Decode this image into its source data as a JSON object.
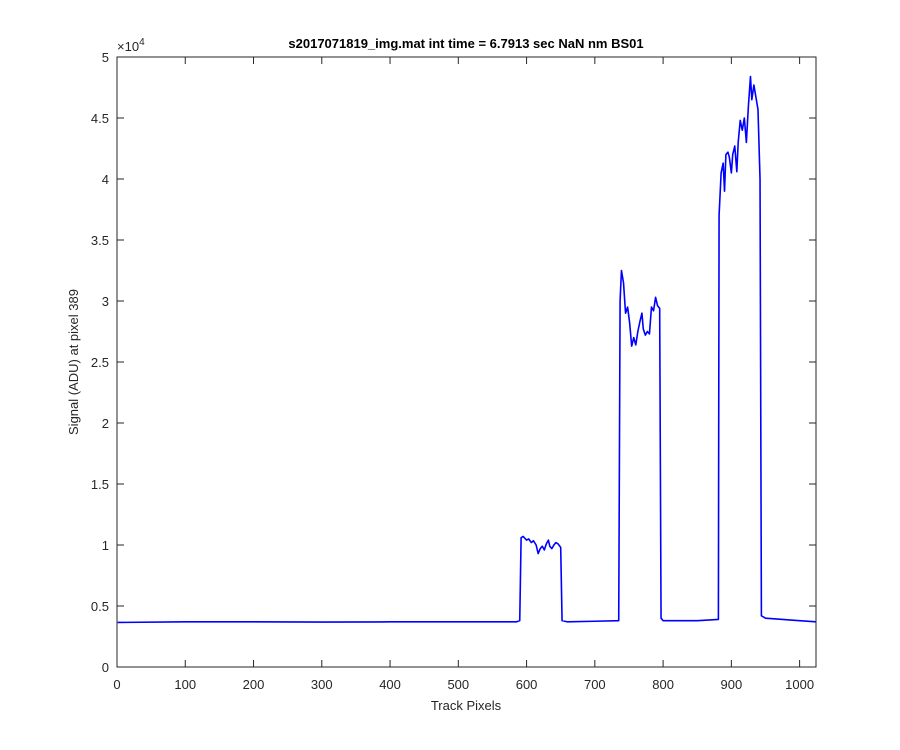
{
  "chart_data": {
    "type": "line",
    "title": "s2017071819_img.mat int time = 6.7913 sec  NaN nm BS01",
    "xlabel": "Track Pixels",
    "ylabel": "Signal (ADU) at pixel 389",
    "xlim": [
      0,
      1024
    ],
    "ylim": [
      0,
      50000
    ],
    "x_ticks": [
      0,
      100,
      200,
      300,
      400,
      500,
      600,
      700,
      800,
      900,
      1000
    ],
    "x_tick_labels": [
      "0",
      "100",
      "200",
      "300",
      "400",
      "500",
      "600",
      "700",
      "800",
      "900",
      "1000"
    ],
    "y_ticks": [
      0,
      5000,
      10000,
      15000,
      20000,
      25000,
      30000,
      35000,
      40000,
      45000,
      50000
    ],
    "y_tick_labels": [
      "0",
      "0.5",
      "1",
      "1.5",
      "2",
      "2.5",
      "3",
      "3.5",
      "4",
      "4.5",
      "5"
    ],
    "y_exponent_label": "×10",
    "y_exponent_power": "4",
    "grid": false,
    "series": [
      {
        "color": "#0000ff",
        "points": [
          [
            1,
            3650
          ],
          [
            100,
            3700
          ],
          [
            200,
            3700
          ],
          [
            300,
            3680
          ],
          [
            400,
            3700
          ],
          [
            500,
            3700
          ],
          [
            585,
            3700
          ],
          [
            590,
            3800
          ],
          [
            592,
            10600
          ],
          [
            595,
            10700
          ],
          [
            600,
            10400
          ],
          [
            603,
            10500
          ],
          [
            607,
            10200
          ],
          [
            610,
            10350
          ],
          [
            614,
            10000
          ],
          [
            617,
            9300
          ],
          [
            620,
            9700
          ],
          [
            623,
            9900
          ],
          [
            626,
            9600
          ],
          [
            629,
            10100
          ],
          [
            632,
            10400
          ],
          [
            634,
            9900
          ],
          [
            637,
            9700
          ],
          [
            640,
            10000
          ],
          [
            643,
            10200
          ],
          [
            646,
            10100
          ],
          [
            650,
            9800
          ],
          [
            652,
            3800
          ],
          [
            660,
            3700
          ],
          [
            700,
            3750
          ],
          [
            735,
            3800
          ],
          [
            737,
            30000
          ],
          [
            739,
            32500
          ],
          [
            742,
            31500
          ],
          [
            745,
            29000
          ],
          [
            748,
            29500
          ],
          [
            751,
            28200
          ],
          [
            754,
            26300
          ],
          [
            757,
            27000
          ],
          [
            760,
            26400
          ],
          [
            763,
            27500
          ],
          [
            766,
            28300
          ],
          [
            769,
            29000
          ],
          [
            771,
            27700
          ],
          [
            774,
            27200
          ],
          [
            777,
            27500
          ],
          [
            780,
            27300
          ],
          [
            783,
            29500
          ],
          [
            786,
            29200
          ],
          [
            789,
            30300
          ],
          [
            792,
            29600
          ],
          [
            795,
            29400
          ],
          [
            797,
            4000
          ],
          [
            800,
            3800
          ],
          [
            850,
            3800
          ],
          [
            881,
            3900
          ],
          [
            882,
            37000
          ],
          [
            885,
            40500
          ],
          [
            888,
            41300
          ],
          [
            890,
            39000
          ],
          [
            892,
            42000
          ],
          [
            895,
            42200
          ],
          [
            897,
            41800
          ],
          [
            900,
            40500
          ],
          [
            902,
            42000
          ],
          [
            905,
            42700
          ],
          [
            908,
            40600
          ],
          [
            910,
            43000
          ],
          [
            913,
            44800
          ],
          [
            916,
            44000
          ],
          [
            919,
            45000
          ],
          [
            922,
            43000
          ],
          [
            925,
            46000
          ],
          [
            928,
            48400
          ],
          [
            930,
            46500
          ],
          [
            933,
            47700
          ],
          [
            936,
            46700
          ],
          [
            939,
            45700
          ],
          [
            942,
            40000
          ],
          [
            944,
            4200
          ],
          [
            950,
            4000
          ],
          [
            1000,
            3800
          ],
          [
            1024,
            3700
          ]
        ]
      }
    ]
  }
}
